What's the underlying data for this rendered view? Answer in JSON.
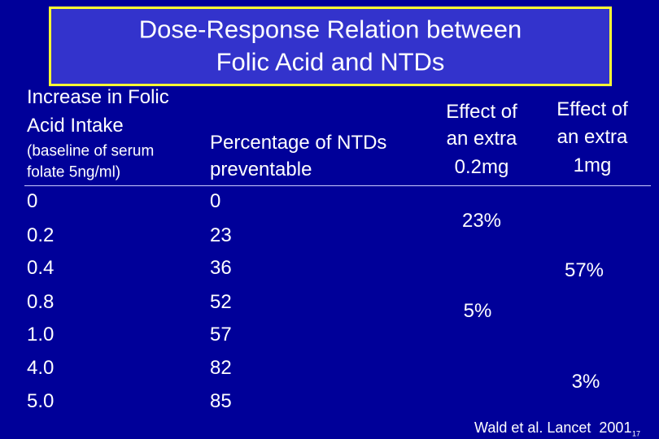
{
  "title": [
    "Dose-Response Relation between",
    "Folic Acid and NTDs"
  ],
  "table": {
    "columns": [
      {
        "header": [
          "Increase in Folic",
          "Acid Intake"
        ],
        "note": [
          "(baseline of serum",
          "folate 5ng/ml)"
        ],
        "cells": [
          "0",
          "0.2",
          "0.4",
          "0.8",
          "1.0",
          "4.0",
          "5.0"
        ]
      },
      {
        "header": [
          "Percentage of NTDs",
          "preventable"
        ],
        "cells": [
          "0",
          "23",
          "36",
          "52",
          "57",
          "82",
          "85"
        ]
      },
      {
        "header": [
          "Effect of",
          "an extra",
          "0.2mg"
        ],
        "cells": [
          "23%",
          "5%"
        ]
      },
      {
        "header": [
          "Effect of",
          "an extra",
          "1mg"
        ],
        "cells": [
          "57%",
          "3%"
        ]
      }
    ]
  },
  "footer": {
    "citation": "Wald et al. Lancet  2001",
    "slide_number": "17"
  }
}
